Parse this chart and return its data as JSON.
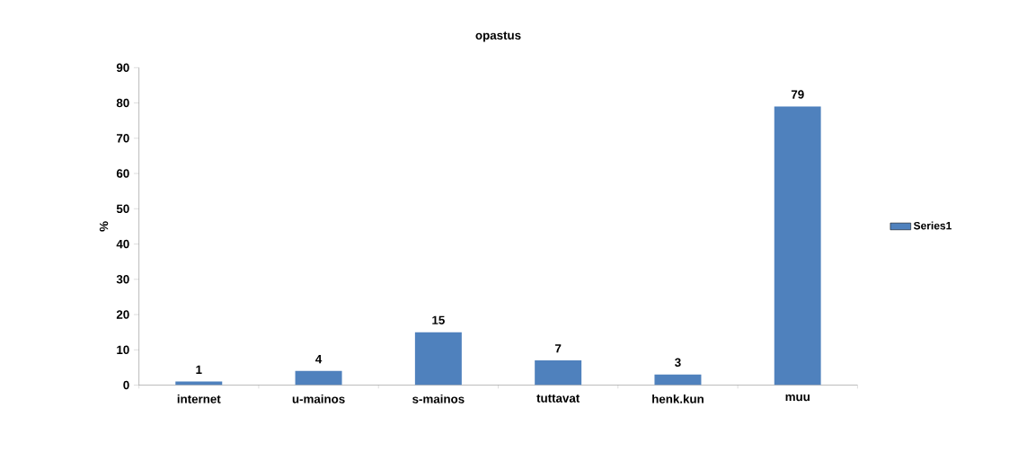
{
  "chart_data": {
    "type": "bar",
    "title": "opastus",
    "ylabel": "%",
    "categories": [
      "internet",
      "u-mainos",
      "s-mainos",
      "tuttavat",
      "henk.kun",
      "muu"
    ],
    "series": [
      {
        "name": "Series1",
        "color": "#4f81bd",
        "values": [
          1,
          4,
          15,
          7,
          3,
          79
        ]
      }
    ],
    "ylim": [
      0,
      90
    ],
    "yticks": [
      0,
      10,
      20,
      30,
      40,
      50,
      60,
      70,
      80,
      90
    ],
    "grid": false,
    "legend": "right",
    "data_labels": true
  }
}
